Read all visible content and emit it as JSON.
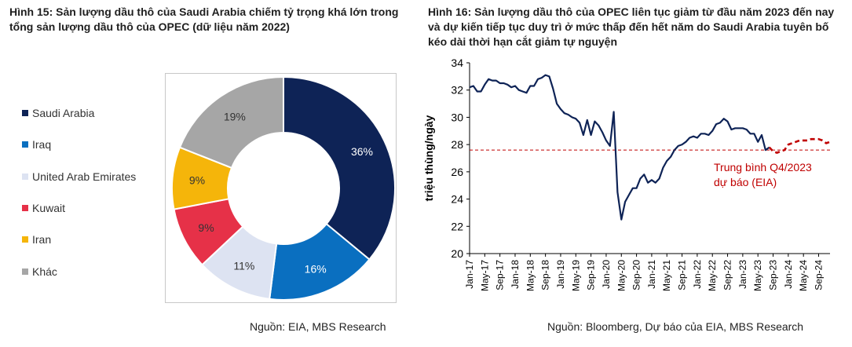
{
  "figure_left": {
    "title": "Hình 15: Sản lượng dầu thô của Saudi Arabia chiếm tỷ trọng khá lớn trong tổng sản lượng dầu thô của OPEC (dữ liệu năm 2022)",
    "source": "Nguồn: EIA, MBS Research"
  },
  "figure_right": {
    "title": "Hình 16: Sản lượng dầu thô của OPEC liên tục giảm từ đầu năm 2023 đến nay và dự kiến tiếp tục duy trì ở mức thấp đến hết năm do Saudi Arabia tuyên bố kéo dài thời hạn cắt giảm tự nguyện",
    "source": "Nguồn: Bloomberg, Dự báo của EIA, MBS Research"
  },
  "chart_data": [
    {
      "type": "pie",
      "donut": true,
      "title": "",
      "legend_position": "left",
      "categories": [
        "Saudi Arabia",
        "Iraq",
        "United Arab Emirates",
        "Kuwait",
        "Iran",
        "Khác"
      ],
      "values": [
        36,
        16,
        11,
        9,
        9,
        19
      ],
      "labels": [
        "36%",
        "16%",
        "11%",
        "9%",
        "9%",
        "19%"
      ],
      "colors": [
        "#0e2356",
        "#0a6fc0",
        "#dde3f2",
        "#e63148",
        "#f5b50a",
        "#a6a6a6"
      ],
      "label_colors": [
        "#ffffff",
        "#ffffff",
        "#333333",
        "#333333",
        "#333333",
        "#333333"
      ]
    },
    {
      "type": "line",
      "title": "",
      "xlabel": "",
      "ylabel": "triệu thùng/ngày",
      "ylim": [
        20,
        34
      ],
      "yticks": [
        20,
        22,
        24,
        26,
        28,
        30,
        32,
        34
      ],
      "xlim": [
        "2017-01",
        "2024-12"
      ],
      "xticks": [
        "Jan-17",
        "May-17",
        "Sep-17",
        "Jan-18",
        "May-18",
        "Sep-18",
        "Jan-19",
        "May-19",
        "Sep-19",
        "Jan-20",
        "May-20",
        "Sep-20",
        "Jan-21",
        "May-21",
        "Sep-21",
        "Jan-22",
        "May-22",
        "Sep-22",
        "Jan-23",
        "May-23",
        "Sep-23",
        "Jan-24",
        "May-24",
        "Sep-24"
      ],
      "grid": false,
      "annotation": {
        "text_lines": [
          "Trung bình Q4/2023",
          "dự báo (EIA)"
        ],
        "y": 27.6,
        "color": "#c00000"
      },
      "series": [
        {
          "style": "solid",
          "color": "#0e2356",
          "x": [
            "2017-01",
            "2017-02",
            "2017-03",
            "2017-04",
            "2017-05",
            "2017-06",
            "2017-07",
            "2017-08",
            "2017-09",
            "2017-10",
            "2017-11",
            "2017-12",
            "2018-01",
            "2018-02",
            "2018-03",
            "2018-04",
            "2018-05",
            "2018-06",
            "2018-07",
            "2018-08",
            "2018-09",
            "2018-10",
            "2018-11",
            "2018-12",
            "2019-01",
            "2019-02",
            "2019-03",
            "2019-04",
            "2019-05",
            "2019-06",
            "2019-07",
            "2019-08",
            "2019-09",
            "2019-10",
            "2019-11",
            "2019-12",
            "2020-01",
            "2020-02",
            "2020-03",
            "2020-04",
            "2020-05",
            "2020-06",
            "2020-07",
            "2020-08",
            "2020-09",
            "2020-10",
            "2020-11",
            "2020-12",
            "2021-01",
            "2021-02",
            "2021-03",
            "2021-04",
            "2021-05",
            "2021-06",
            "2021-07",
            "2021-08",
            "2021-09",
            "2021-10",
            "2021-11",
            "2021-12",
            "2022-01",
            "2022-02",
            "2022-03",
            "2022-04",
            "2022-05",
            "2022-06",
            "2022-07",
            "2022-08",
            "2022-09",
            "2022-10",
            "2022-11",
            "2022-12",
            "2023-01",
            "2023-02",
            "2023-03",
            "2023-04",
            "2023-05",
            "2023-06",
            "2023-07",
            "2023-08"
          ],
          "values": [
            32.2,
            32.3,
            31.9,
            31.9,
            32.4,
            32.8,
            32.7,
            32.7,
            32.5,
            32.5,
            32.4,
            32.2,
            32.3,
            32.0,
            31.9,
            31.8,
            32.3,
            32.3,
            32.8,
            32.9,
            33.1,
            33.0,
            32.1,
            31.0,
            30.6,
            30.3,
            30.2,
            30.0,
            29.9,
            29.6,
            28.7,
            29.8,
            28.7,
            29.7,
            29.4,
            28.9,
            28.3,
            27.9,
            30.4,
            24.5,
            22.5,
            23.8,
            24.3,
            24.8,
            24.8,
            25.5,
            25.8,
            25.2,
            25.4,
            25.2,
            25.5,
            26.3,
            26.8,
            27.1,
            27.6,
            27.9,
            28.0,
            28.2,
            28.5,
            28.6,
            28.5,
            28.8,
            28.8,
            28.7,
            29.0,
            29.5,
            29.6,
            29.9,
            29.7,
            29.1,
            29.2,
            29.2,
            29.2,
            29.1,
            28.8,
            28.8,
            28.2,
            28.7,
            27.6,
            27.8
          ]
        },
        {
          "style": "dashed",
          "color": "#c00000",
          "x": [
            "2023-08",
            "2023-09",
            "2023-10",
            "2023-11",
            "2023-12",
            "2024-01",
            "2024-02",
            "2024-03",
            "2024-04",
            "2024-05",
            "2024-06",
            "2024-07",
            "2024-08",
            "2024-09",
            "2024-10",
            "2024-11",
            "2024-12"
          ],
          "values": [
            27.8,
            27.5,
            27.4,
            27.5,
            27.6,
            28.0,
            28.1,
            28.2,
            28.3,
            28.3,
            28.3,
            28.4,
            28.4,
            28.4,
            28.3,
            28.1,
            28.2
          ]
        }
      ],
      "reference_line": {
        "style": "dashed",
        "color": "#c00000",
        "y": 27.6
      }
    }
  ]
}
